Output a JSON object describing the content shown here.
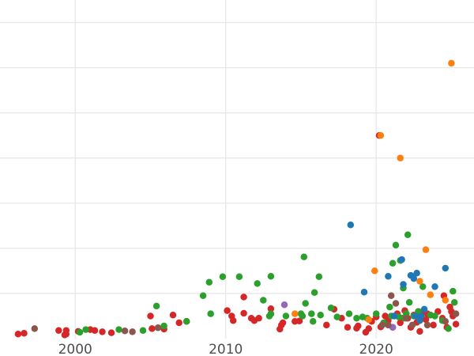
{
  "chart_data": {
    "type": "scatter",
    "xlim": [
      1995,
      2026.5
    ],
    "ylim": [
      0,
      7.5
    ],
    "xticks": [
      2000,
      2010,
      2020
    ],
    "x_tick_labels": [
      "2000",
      "2010",
      "2020"
    ],
    "yticks": [
      1,
      2,
      3,
      4,
      5,
      6,
      7
    ],
    "y_tick_labels": [],
    "grid": true,
    "legend": "none",
    "colors": {
      "red": "#d62728",
      "green": "#2ca02c",
      "blue": "#1f77b4",
      "orange": "#ff7f0e",
      "purple": "#9467bd",
      "brown": "#8c564b",
      "pink": "#e377c2"
    },
    "series": [
      {
        "color": "#d62728",
        "x": [
          1996.2,
          1996.6,
          1998.9,
          1999.4,
          1999.4,
          1999.3,
          2000.2,
          2001.0,
          2001.3,
          2001.8,
          2002.4,
          2005.0,
          2005.1,
          2005.9,
          2006.5,
          2006.9,
          2007.4,
          2010.1,
          2010.4,
          2010.5,
          2011.2,
          2011.2,
          2011.7,
          2011.9,
          2012.2,
          2013.0,
          2013.6,
          2013.7,
          2013.8,
          2014.6,
          2014.9,
          2016.7,
          2017.2,
          2017.7,
          2018.1,
          2018.7,
          2018.8,
          2019.3,
          2019.5,
          2019.7,
          2020.0,
          2020.3,
          2020.6,
          2020.8,
          2021.1,
          2021.4,
          2021.6,
          2021.9,
          2022.1,
          2022.3,
          2022.5,
          2022.7,
          2022.9,
          2023.1,
          2023.3,
          2023.6,
          2023.8,
          2024.1,
          2024.4,
          2024.7,
          2024.9,
          2025.1,
          2025.3,
          2020.2,
          2021.7,
          2022.8,
          2023.4,
          2024.5,
          2025.0
        ],
        "y": [
          0.1,
          0.12,
          0.18,
          0.1,
          0.18,
          0.08,
          0.16,
          0.2,
          0.18,
          0.15,
          0.13,
          0.5,
          0.22,
          0.21,
          0.52,
          0.35,
          0.38,
          0.62,
          0.5,
          0.4,
          0.92,
          0.56,
          0.45,
          0.4,
          0.45,
          0.66,
          0.21,
          0.3,
          0.35,
          0.38,
          0.39,
          0.3,
          0.65,
          0.45,
          0.25,
          0.23,
          0.28,
          0.14,
          0.22,
          0.38,
          0.48,
          0.26,
          0.5,
          0.4,
          0.25,
          0.55,
          0.35,
          0.62,
          0.45,
          0.25,
          0.52,
          0.36,
          0.16,
          0.6,
          0.42,
          0.52,
          0.3,
          0.6,
          0.45,
          0.25,
          0.7,
          0.5,
          0.32,
          4.5,
          0.45,
          0.6,
          0.55,
          0.95,
          0.6
        ],
        "size": [
          5,
          5,
          5,
          5,
          5,
          5,
          5,
          5,
          5,
          5,
          5,
          5,
          5,
          5,
          5,
          5,
          5,
          5,
          5,
          5,
          5,
          5,
          5,
          5,
          5,
          5,
          5,
          5,
          5,
          5,
          5,
          5,
          5,
          5,
          5,
          5,
          5,
          5,
          5,
          5,
          5,
          5,
          5,
          5,
          5,
          5,
          5,
          5,
          5,
          5,
          5,
          5,
          5,
          5,
          5,
          5,
          5,
          5,
          5,
          5,
          5,
          5,
          5,
          5,
          5,
          5,
          5,
          5,
          5
        ]
      },
      {
        "color": "#2ca02c",
        "x": [
          2000.3,
          2000.7,
          2002.9,
          2004.5,
          2005.4,
          2005.9,
          2007.4,
          2008.5,
          2008.9,
          2009.0,
          2009.8,
          2010.9,
          2012.1,
          2012.5,
          2012.9,
          2013.0,
          2013.0,
          2014.0,
          2015.0,
          2015.1,
          2015.2,
          2015.3,
          2015.7,
          2015.8,
          2015.9,
          2016.2,
          2016.3,
          2017.0,
          2017.4,
          2018.2,
          2018.7,
          2019.1,
          2019.4,
          2020.0,
          2020.5,
          2020.9,
          2021.0,
          2021.1,
          2021.3,
          2021.6,
          2021.8,
          2021.9,
          2022.1,
          2022.2,
          2022.5,
          2022.8,
          2023.1,
          2023.6,
          2023.9,
          2024.4,
          2024.8,
          2025.1,
          2025.2,
          2021.5,
          2022.0
        ],
        "y": [
          0.14,
          0.2,
          0.2,
          0.18,
          0.72,
          0.28,
          0.38,
          0.95,
          1.25,
          0.55,
          1.37,
          1.37,
          1.22,
          0.85,
          0.5,
          0.55,
          1.38,
          0.5,
          0.55,
          0.5,
          1.81,
          0.78,
          0.55,
          0.38,
          1.02,
          1.37,
          0.52,
          0.68,
          0.48,
          0.55,
          0.45,
          0.48,
          0.45,
          0.55,
          0.35,
          0.7,
          0.5,
          1.67,
          2.07,
          1.73,
          1.12,
          0.45,
          2.3,
          0.8,
          0.5,
          0.6,
          1.15,
          0.52,
          0.5,
          0.4,
          0.22,
          1.05,
          0.8,
          0.48,
          0.55
        ],
        "size": [
          5,
          5,
          5,
          5,
          5,
          5,
          5,
          5,
          5,
          5,
          5,
          5,
          5,
          5,
          5,
          5,
          5,
          5,
          5,
          5,
          5,
          5,
          5,
          5,
          5,
          5,
          5,
          5,
          5,
          5,
          5,
          5,
          5,
          5,
          5,
          5,
          5,
          5,
          5,
          5,
          5,
          5,
          5,
          5,
          5,
          5,
          5,
          5,
          5,
          5,
          5,
          5,
          5,
          5,
          5
        ]
      },
      {
        "color": "#1f77b4",
        "x": [
          2018.3,
          2019.2,
          2020.8,
          2021.7,
          2021.8,
          2022.3,
          2022.5,
          2022.6,
          2022.7,
          2023.0,
          2023.2,
          2023.9,
          2024.6,
          2021.2,
          2022.9
        ],
        "y": [
          2.52,
          1.03,
          1.38,
          1.75,
          1.2,
          1.4,
          1.33,
          0.5,
          1.45,
          0.5,
          0.65,
          1.15,
          1.56,
          0.5,
          0.4
        ],
        "size": [
          5,
          5,
          5,
          5,
          5,
          5,
          5,
          5,
          5,
          5,
          5,
          5,
          5,
          5,
          5
        ]
      },
      {
        "color": "#ff7f0e",
        "x": [
          2014.6,
          2019.5,
          2019.9,
          2020.3,
          2021.6,
          2022.9,
          2023.3,
          2023.6,
          2025.0,
          2024.6
        ],
        "y": [
          0.55,
          0.42,
          1.5,
          4.5,
          4.0,
          1.27,
          1.97,
          0.97,
          6.1,
          0.85
        ],
        "size": [
          5,
          5,
          5,
          5,
          5,
          5,
          5,
          5,
          5,
          5
        ]
      },
      {
        "color": "#9467bd",
        "x": [
          2013.9,
          2021.1
        ],
        "y": [
          0.75,
          0.25
        ],
        "size": [
          5,
          5
        ]
      },
      {
        "color": "#8c564b",
        "x": [
          1997.3,
          2003.3,
          2003.8,
          2005.5,
          2020.4,
          2021.0,
          2021.3,
          2022.0,
          2022.4,
          2023.4,
          2024.6,
          2025.3,
          2020.8
        ],
        "y": [
          0.22,
          0.17,
          0.15,
          0.24,
          0.3,
          0.95,
          0.78,
          0.45,
          0.3,
          0.3,
          0.38,
          0.55,
          0.3
        ],
        "size": [
          5,
          5,
          5,
          5,
          5,
          5,
          5,
          5,
          5,
          5,
          5,
          5,
          5
        ]
      }
    ]
  }
}
